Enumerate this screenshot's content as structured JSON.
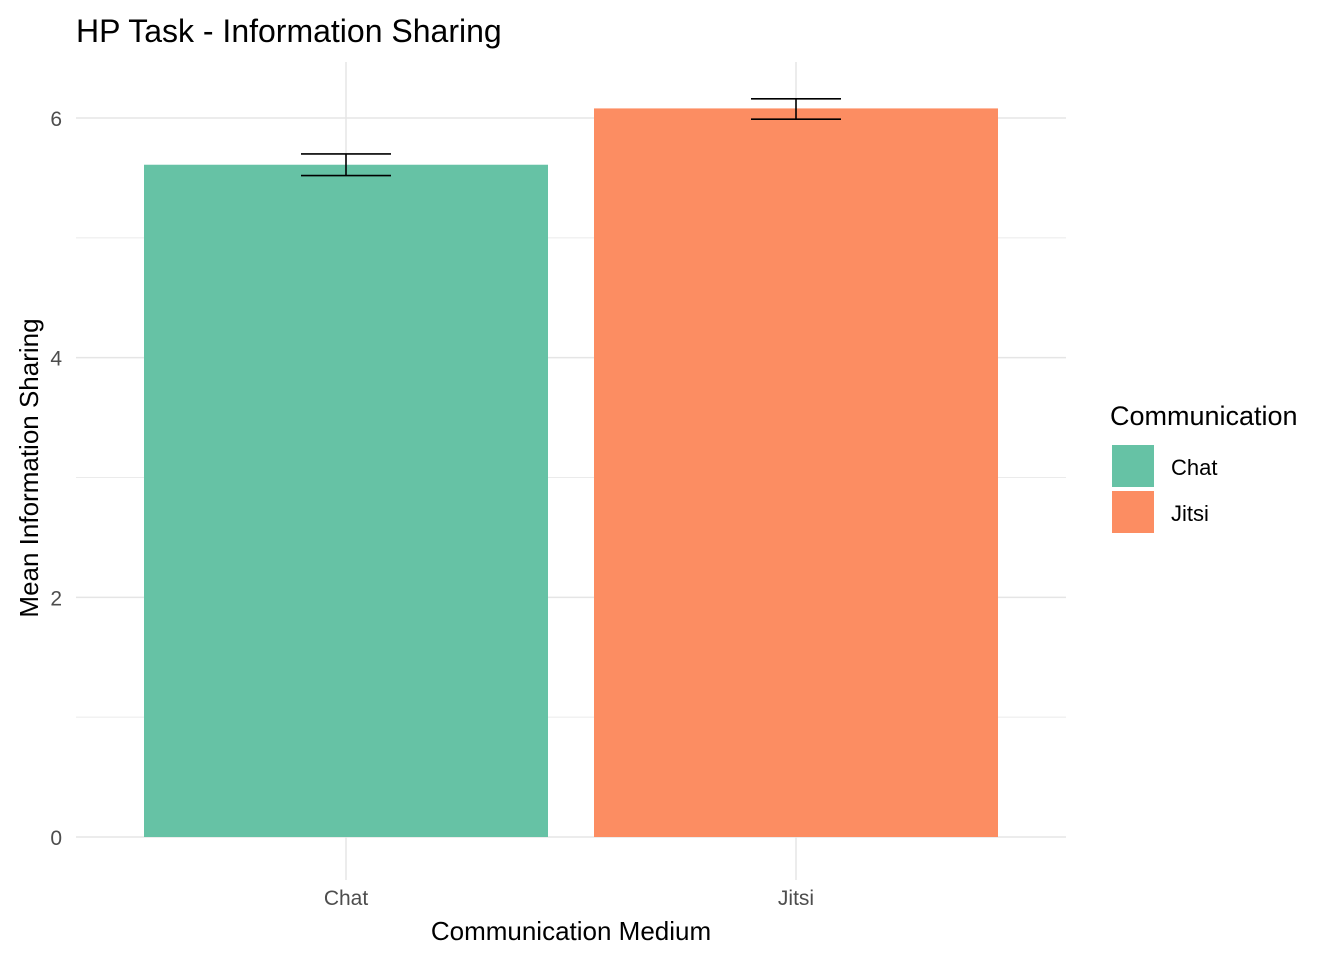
{
  "chart_data": {
    "type": "bar",
    "title": "HP Task - Information Sharing",
    "xlabel": "Communication Medium",
    "ylabel": "Mean Information Sharing",
    "categories": [
      "Chat",
      "Jitsi"
    ],
    "values": [
      5.61,
      6.08
    ],
    "error_bars": [
      {
        "lower": 5.52,
        "upper": 5.7
      },
      {
        "lower": 5.99,
        "upper": 6.16
      }
    ],
    "colors": [
      "#66c2a5",
      "#fc8d62"
    ],
    "ylim": [
      0,
      6.35
    ],
    "y_ticks": [
      0,
      2,
      4,
      6
    ],
    "y_tick_labels": [
      "0",
      "2",
      "4",
      "6"
    ],
    "grid": true,
    "legend": {
      "title": "Communication",
      "placement": "right",
      "entries": [
        {
          "label": "Chat",
          "color": "#66c2a5"
        },
        {
          "label": "Jitsi",
          "color": "#fc8d62"
        }
      ]
    }
  }
}
